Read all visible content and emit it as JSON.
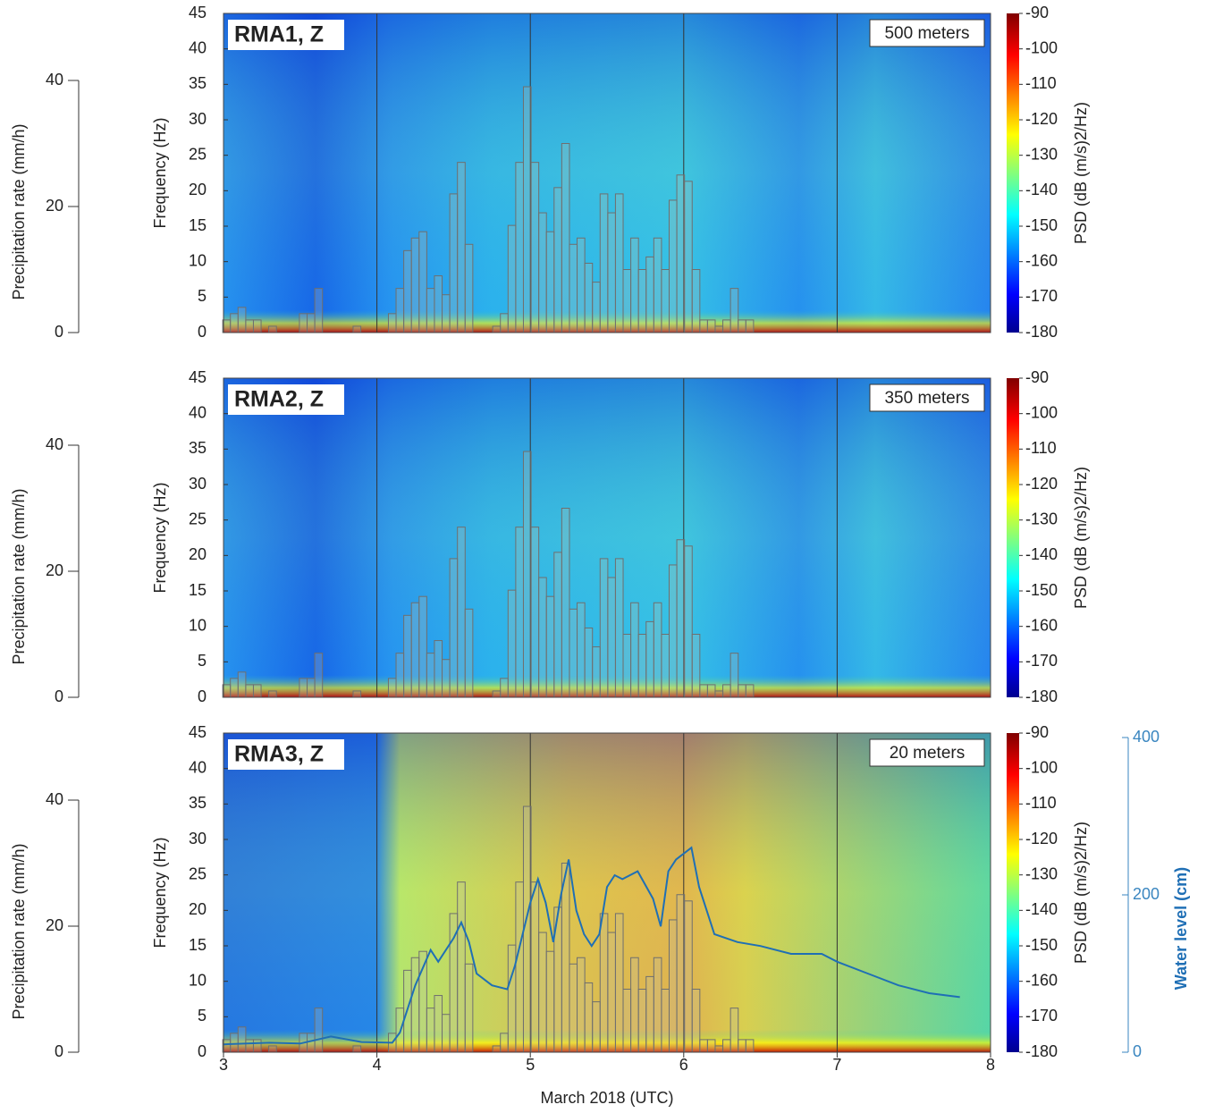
{
  "chart_data": [
    {
      "type": "bar",
      "title": "RMA1, Z",
      "annotation": "500 meters",
      "xlim": [
        3,
        8
      ],
      "xticks": [
        3,
        4,
        5,
        6,
        7,
        8
      ],
      "ylabel": "Precipitation rate (mm/h)",
      "ylim": [
        0,
        40
      ],
      "yticks": [
        0,
        20,
        40
      ],
      "freq_label": "Frequency (Hz)",
      "freq_lim": [
        0,
        45
      ],
      "freq_ticks": [
        0,
        5,
        10,
        15,
        20,
        25,
        30,
        35,
        40,
        45
      ],
      "color_label": "PSD (dB (m/s)2/Hz)",
      "clim": [
        -180,
        -90
      ],
      "cticks": [
        -90,
        -100,
        -110,
        -120,
        -130,
        -140,
        -150,
        -160,
        -170,
        -180
      ],
      "series": [
        {
          "type": "bar",
          "color": "#6f6f6f",
          "x": [
            3.02,
            3.07,
            3.12,
            3.17,
            3.22,
            3.32,
            3.52,
            3.57,
            3.62,
            3.87,
            4.1,
            4.15,
            4.2,
            4.25,
            4.3,
            4.35,
            4.4,
            4.45,
            4.5,
            4.55,
            4.6,
            4.78,
            4.83,
            4.88,
            4.93,
            4.98,
            5.03,
            5.08,
            5.13,
            5.18,
            5.23,
            5.28,
            5.33,
            5.38,
            5.43,
            5.48,
            5.53,
            5.58,
            5.63,
            5.68,
            5.73,
            5.78,
            5.83,
            5.88,
            5.93,
            5.98,
            6.03,
            6.08,
            6.13,
            6.18,
            6.23,
            6.28,
            6.33,
            6.38,
            6.43
          ],
          "values": [
            2,
            3,
            4,
            2,
            2,
            1,
            3,
            3,
            7,
            1,
            3,
            7,
            13,
            15,
            16,
            7,
            9,
            6,
            22,
            27,
            14,
            1,
            3,
            17,
            27,
            39,
            27,
            19,
            16,
            23,
            30,
            14,
            15,
            11,
            8,
            22,
            19,
            22,
            10,
            15,
            10,
            12,
            15,
            10,
            21,
            25,
            24,
            10,
            2,
            2,
            1,
            2,
            7,
            2,
            2
          ]
        }
      ]
    },
    {
      "type": "bar",
      "title": "RMA2, Z",
      "annotation": "350 meters",
      "xlim": [
        3,
        8
      ],
      "xticks": [
        3,
        4,
        5,
        6,
        7,
        8
      ],
      "ylabel": "Precipitation rate (mm/h)",
      "ylim": [
        0,
        40
      ],
      "yticks": [
        0,
        20,
        40
      ],
      "freq_label": "Frequency (Hz)",
      "freq_lim": [
        0,
        45
      ],
      "freq_ticks": [
        0,
        5,
        10,
        15,
        20,
        25,
        30,
        35,
        40,
        45
      ],
      "color_label": "PSD (dB (m/s)2/Hz)",
      "clim": [
        -180,
        -90
      ],
      "cticks": [
        -90,
        -100,
        -110,
        -120,
        -130,
        -140,
        -150,
        -160,
        -170,
        -180
      ],
      "series": [
        {
          "type": "bar",
          "color": "#6f6f6f",
          "x": [
            3.02,
            3.07,
            3.12,
            3.17,
            3.22,
            3.32,
            3.52,
            3.57,
            3.62,
            3.87,
            4.1,
            4.15,
            4.2,
            4.25,
            4.3,
            4.35,
            4.4,
            4.45,
            4.5,
            4.55,
            4.6,
            4.78,
            4.83,
            4.88,
            4.93,
            4.98,
            5.03,
            5.08,
            5.13,
            5.18,
            5.23,
            5.28,
            5.33,
            5.38,
            5.43,
            5.48,
            5.53,
            5.58,
            5.63,
            5.68,
            5.73,
            5.78,
            5.83,
            5.88,
            5.93,
            5.98,
            6.03,
            6.08,
            6.13,
            6.18,
            6.23,
            6.28,
            6.33,
            6.38,
            6.43
          ],
          "values": [
            2,
            3,
            4,
            2,
            2,
            1,
            3,
            3,
            7,
            1,
            3,
            7,
            13,
            15,
            16,
            7,
            9,
            6,
            22,
            27,
            14,
            1,
            3,
            17,
            27,
            39,
            27,
            19,
            16,
            23,
            30,
            14,
            15,
            11,
            8,
            22,
            19,
            22,
            10,
            15,
            10,
            12,
            15,
            10,
            21,
            25,
            24,
            10,
            2,
            2,
            1,
            2,
            7,
            2,
            2
          ]
        }
      ]
    },
    {
      "type": "bar",
      "title": "RMA3, Z",
      "annotation": "20 meters",
      "xlim": [
        3,
        8
      ],
      "xticks": [
        3,
        4,
        5,
        6,
        7,
        8
      ],
      "xlabel": "March 2018 (UTC)",
      "ylabel": "Precipitation rate (mm/h)",
      "ylim": [
        0,
        40
      ],
      "yticks": [
        0,
        20,
        40
      ],
      "freq_label": "Frequency (Hz)",
      "freq_lim": [
        0,
        45
      ],
      "freq_ticks": [
        0,
        5,
        10,
        15,
        20,
        25,
        30,
        35,
        40,
        45
      ],
      "color_label": "PSD (dB (m/s)2/Hz)",
      "clim": [
        -180,
        -90
      ],
      "cticks": [
        -90,
        -100,
        -110,
        -120,
        -130,
        -140,
        -150,
        -160,
        -170,
        -180
      ],
      "y2label": "Water level (cm)",
      "y2lim": [
        0,
        400
      ],
      "y2ticks": [
        0,
        200,
        400
      ],
      "series": [
        {
          "type": "bar",
          "color": "#6f6f6f",
          "x": [
            3.02,
            3.07,
            3.12,
            3.17,
            3.22,
            3.32,
            3.52,
            3.57,
            3.62,
            3.87,
            4.1,
            4.15,
            4.2,
            4.25,
            4.3,
            4.35,
            4.4,
            4.45,
            4.5,
            4.55,
            4.6,
            4.78,
            4.83,
            4.88,
            4.93,
            4.98,
            5.03,
            5.08,
            5.13,
            5.18,
            5.23,
            5.28,
            5.33,
            5.38,
            5.43,
            5.48,
            5.53,
            5.58,
            5.63,
            5.68,
            5.73,
            5.78,
            5.83,
            5.88,
            5.93,
            5.98,
            6.03,
            6.08,
            6.13,
            6.18,
            6.23,
            6.28,
            6.33,
            6.38,
            6.43
          ],
          "values": [
            2,
            3,
            4,
            2,
            2,
            1,
            3,
            3,
            7,
            1,
            3,
            7,
            13,
            15,
            16,
            7,
            9,
            6,
            22,
            27,
            14,
            1,
            3,
            17,
            27,
            39,
            27,
            19,
            16,
            23,
            30,
            14,
            15,
            11,
            8,
            22,
            19,
            22,
            10,
            15,
            10,
            12,
            15,
            10,
            21,
            25,
            24,
            10,
            2,
            2,
            1,
            2,
            7,
            2,
            2
          ]
        },
        {
          "type": "line",
          "axis": "y2",
          "color": "#1f6fb5",
          "x": [
            3.0,
            3.3,
            3.5,
            3.7,
            3.9,
            4.1,
            4.15,
            4.25,
            4.35,
            4.4,
            4.5,
            4.55,
            4.6,
            4.65,
            4.75,
            4.85,
            4.9,
            4.95,
            5.0,
            5.05,
            5.1,
            5.15,
            5.2,
            5.25,
            5.3,
            5.35,
            5.4,
            5.45,
            5.5,
            5.55,
            5.6,
            5.7,
            5.8,
            5.85,
            5.9,
            5.95,
            6.05,
            6.1,
            6.2,
            6.35,
            6.5,
            6.7,
            6.9,
            7.0,
            7.2,
            7.4,
            7.6,
            7.8
          ],
          "values": [
            10,
            12,
            11,
            20,
            13,
            12,
            25,
            85,
            130,
            115,
            145,
            165,
            140,
            100,
            85,
            80,
            110,
            150,
            190,
            220,
            190,
            140,
            200,
            245,
            180,
            150,
            135,
            150,
            210,
            225,
            220,
            230,
            195,
            160,
            230,
            245,
            260,
            210,
            150,
            140,
            135,
            125,
            125,
            115,
            100,
            85,
            75,
            70
          ]
        }
      ]
    }
  ]
}
